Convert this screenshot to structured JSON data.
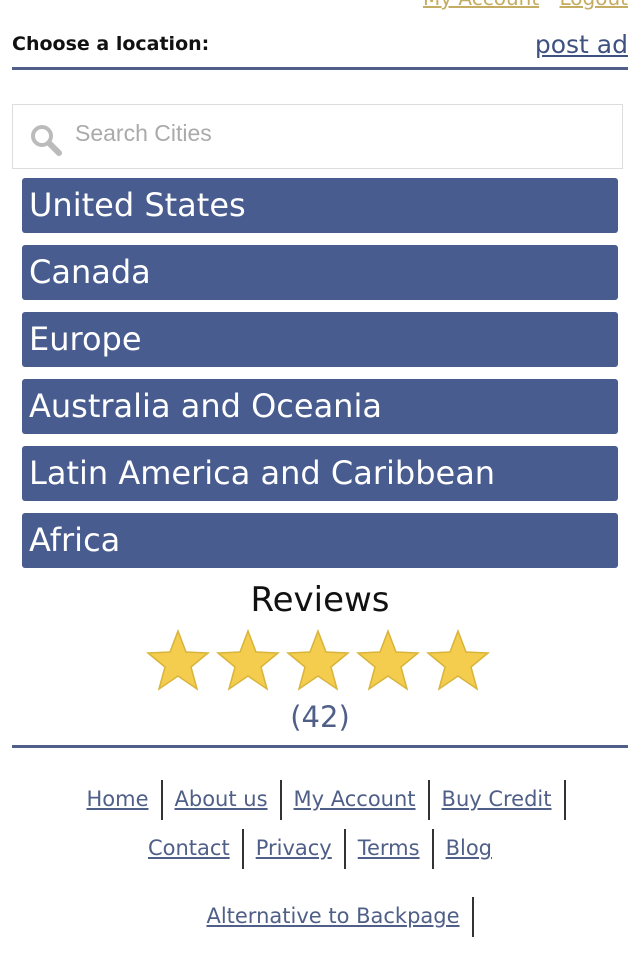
{
  "top_links": [
    "My Account",
    "Logout"
  ],
  "header": {
    "title": "Choose a location:",
    "post_ad": "post ad"
  },
  "search": {
    "placeholder": "Search Cities",
    "icon": "search-icon"
  },
  "regions": [
    "United States",
    "Canada",
    "Europe",
    "Australia and Oceania",
    "Latin America and Caribbean",
    "Africa"
  ],
  "reviews": {
    "title": "Reviews",
    "rating": 5,
    "max": 5,
    "count": "(42)",
    "star_color": "#f4cd4e"
  },
  "footer": {
    "row1": [
      "Home",
      "About us",
      "My Account",
      "Buy Credit"
    ],
    "row2": [
      "Contact",
      "Privacy",
      "Terms",
      "Blog"
    ],
    "row3": [
      "Alternative to Backpage"
    ]
  },
  "colors": {
    "accent": "#485c8f",
    "link": "#4f5f88",
    "top_link": "#c4ad62"
  }
}
